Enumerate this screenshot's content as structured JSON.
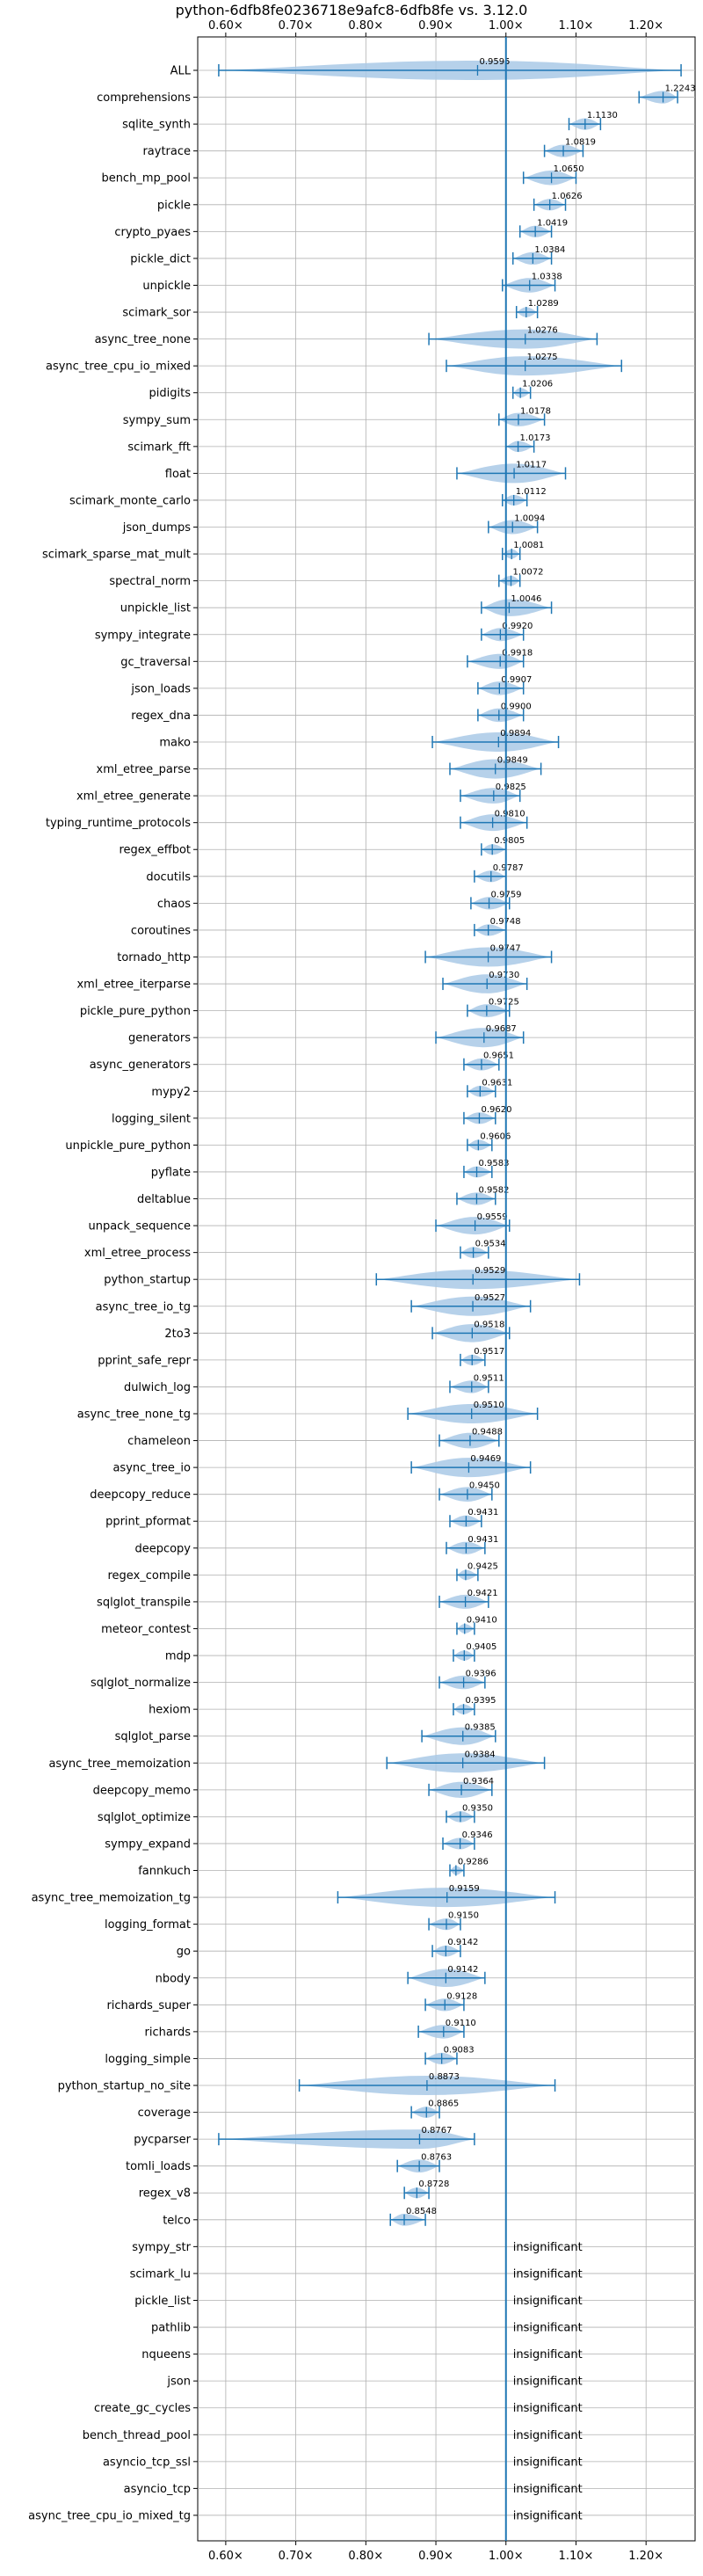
{
  "chart_data": {
    "type": "violin",
    "title": "python-6dfb8fe0236718e9afc8-6dfb8fe vs. 3.12.0",
    "xlim": [
      0.56,
      1.27
    ],
    "x_ticks": [
      {
        "value": 0.6,
        "label": "0.60×"
      },
      {
        "value": 0.7,
        "label": "0.70×"
      },
      {
        "value": 0.8,
        "label": "0.80×"
      },
      {
        "value": 0.9,
        "label": "0.90×"
      },
      {
        "value": 1.0,
        "label": "1.00×"
      },
      {
        "value": 1.1,
        "label": "1.10×"
      },
      {
        "value": 1.2,
        "label": "1.20×"
      }
    ],
    "reference_line": 1.0,
    "grid": true,
    "colors": {
      "accent": "#1f77b4",
      "violin": "#a9c9e6",
      "grid": "#b0b0b0"
    },
    "insignificant_label": "insignificant",
    "benchmarks": [
      {
        "name": "ALL",
        "value": 0.9595,
        "label": "0.9595",
        "min": 0.59,
        "max": 1.25
      },
      {
        "name": "comprehensions",
        "value": 1.2243,
        "label": "1.2243",
        "min": 1.19,
        "max": 1.245
      },
      {
        "name": "sqlite_synth",
        "value": 1.113,
        "label": "1.1130",
        "min": 1.09,
        "max": 1.135
      },
      {
        "name": "raytrace",
        "value": 1.0819,
        "label": "1.0819",
        "min": 1.055,
        "max": 1.11
      },
      {
        "name": "bench_mp_pool",
        "value": 1.065,
        "label": "1.0650",
        "min": 1.025,
        "max": 1.1
      },
      {
        "name": "pickle",
        "value": 1.0626,
        "label": "1.0626",
        "min": 1.04,
        "max": 1.085
      },
      {
        "name": "crypto_pyaes",
        "value": 1.0419,
        "label": "1.0419",
        "min": 1.02,
        "max": 1.065
      },
      {
        "name": "pickle_dict",
        "value": 1.0384,
        "label": "1.0384",
        "min": 1.01,
        "max": 1.065
      },
      {
        "name": "unpickle",
        "value": 1.0338,
        "label": "1.0338",
        "min": 0.995,
        "max": 1.07
      },
      {
        "name": "scimark_sor",
        "value": 1.0289,
        "label": "1.0289",
        "min": 1.015,
        "max": 1.045
      },
      {
        "name": "async_tree_none",
        "value": 1.0276,
        "label": "1.0276",
        "min": 0.89,
        "max": 1.13
      },
      {
        "name": "async_tree_cpu_io_mixed",
        "value": 1.0275,
        "label": "1.0275",
        "min": 0.915,
        "max": 1.165
      },
      {
        "name": "pidigits",
        "value": 1.0206,
        "label": "1.0206",
        "min": 1.01,
        "max": 1.035
      },
      {
        "name": "sympy_sum",
        "value": 1.0178,
        "label": "1.0178",
        "min": 0.99,
        "max": 1.055
      },
      {
        "name": "scimark_fft",
        "value": 1.0173,
        "label": "1.0173",
        "min": 1.0,
        "max": 1.04
      },
      {
        "name": "float",
        "value": 1.0117,
        "label": "1.0117",
        "min": 0.93,
        "max": 1.085
      },
      {
        "name": "scimark_monte_carlo",
        "value": 1.0112,
        "label": "1.0112",
        "min": 0.995,
        "max": 1.03
      },
      {
        "name": "json_dumps",
        "value": 1.0094,
        "label": "1.0094",
        "min": 0.975,
        "max": 1.045
      },
      {
        "name": "scimark_sparse_mat_mult",
        "value": 1.0081,
        "label": "1.0081",
        "min": 0.995,
        "max": 1.02
      },
      {
        "name": "spectral_norm",
        "value": 1.0072,
        "label": "1.0072",
        "min": 0.99,
        "max": 1.02
      },
      {
        "name": "unpickle_list",
        "value": 1.0046,
        "label": "1.0046",
        "min": 0.965,
        "max": 1.065
      },
      {
        "name": "sympy_integrate",
        "value": 0.992,
        "label": "0.9920",
        "min": 0.965,
        "max": 1.025
      },
      {
        "name": "gc_traversal",
        "value": 0.9918,
        "label": "0.9918",
        "min": 0.945,
        "max": 1.025
      },
      {
        "name": "json_loads",
        "value": 0.9907,
        "label": "0.9907",
        "min": 0.96,
        "max": 1.025
      },
      {
        "name": "regex_dna",
        "value": 0.99,
        "label": "0.9900",
        "min": 0.96,
        "max": 1.025
      },
      {
        "name": "mako",
        "value": 0.9894,
        "label": "0.9894",
        "min": 0.895,
        "max": 1.075
      },
      {
        "name": "xml_etree_parse",
        "value": 0.9849,
        "label": "0.9849",
        "min": 0.92,
        "max": 1.05
      },
      {
        "name": "xml_etree_generate",
        "value": 0.9825,
        "label": "0.9825",
        "min": 0.935,
        "max": 1.02
      },
      {
        "name": "typing_runtime_protocols",
        "value": 0.981,
        "label": "0.9810",
        "min": 0.935,
        "max": 1.03
      },
      {
        "name": "regex_effbot",
        "value": 0.9805,
        "label": "0.9805",
        "min": 0.965,
        "max": 1.0
      },
      {
        "name": "docutils",
        "value": 0.9787,
        "label": "0.9787",
        "min": 0.955,
        "max": 1.0
      },
      {
        "name": "chaos",
        "value": 0.9759,
        "label": "0.9759",
        "min": 0.95,
        "max": 1.005
      },
      {
        "name": "coroutines",
        "value": 0.9748,
        "label": "0.9748",
        "min": 0.955,
        "max": 1.0
      },
      {
        "name": "tornado_http",
        "value": 0.9747,
        "label": "0.9747",
        "min": 0.885,
        "max": 1.065
      },
      {
        "name": "xml_etree_iterparse",
        "value": 0.973,
        "label": "0.9730",
        "min": 0.91,
        "max": 1.03
      },
      {
        "name": "pickle_pure_python",
        "value": 0.9725,
        "label": "0.9725",
        "min": 0.945,
        "max": 1.005
      },
      {
        "name": "generators",
        "value": 0.9687,
        "label": "0.9687",
        "min": 0.9,
        "max": 1.025
      },
      {
        "name": "async_generators",
        "value": 0.9651,
        "label": "0.9651",
        "min": 0.94,
        "max": 0.99
      },
      {
        "name": "mypy2",
        "value": 0.9631,
        "label": "0.9631",
        "min": 0.945,
        "max": 0.985
      },
      {
        "name": "logging_silent",
        "value": 0.962,
        "label": "0.9620",
        "min": 0.94,
        "max": 0.985
      },
      {
        "name": "unpickle_pure_python",
        "value": 0.9606,
        "label": "0.9606",
        "min": 0.945,
        "max": 0.98
      },
      {
        "name": "pyflate",
        "value": 0.9583,
        "label": "0.9583",
        "min": 0.94,
        "max": 0.98
      },
      {
        "name": "deltablue",
        "value": 0.9582,
        "label": "0.9582",
        "min": 0.93,
        "max": 0.985
      },
      {
        "name": "unpack_sequence",
        "value": 0.9559,
        "label": "0.9559",
        "min": 0.9,
        "max": 1.005
      },
      {
        "name": "xml_etree_process",
        "value": 0.9534,
        "label": "0.9534",
        "min": 0.935,
        "max": 0.975
      },
      {
        "name": "python_startup",
        "value": 0.9529,
        "label": "0.9529",
        "min": 0.815,
        "max": 1.105
      },
      {
        "name": "async_tree_io_tg",
        "value": 0.9527,
        "label": "0.9527",
        "min": 0.865,
        "max": 1.035
      },
      {
        "name": "2to3",
        "value": 0.9518,
        "label": "0.9518",
        "min": 0.895,
        "max": 1.005
      },
      {
        "name": "pprint_safe_repr",
        "value": 0.9517,
        "label": "0.9517",
        "min": 0.935,
        "max": 0.97
      },
      {
        "name": "dulwich_log",
        "value": 0.9511,
        "label": "0.9511",
        "min": 0.92,
        "max": 0.975
      },
      {
        "name": "async_tree_none_tg",
        "value": 0.951,
        "label": "0.9510",
        "min": 0.86,
        "max": 1.045
      },
      {
        "name": "chameleon",
        "value": 0.9488,
        "label": "0.9488",
        "min": 0.905,
        "max": 0.99
      },
      {
        "name": "async_tree_io",
        "value": 0.9469,
        "label": "0.9469",
        "min": 0.865,
        "max": 1.035
      },
      {
        "name": "deepcopy_reduce",
        "value": 0.945,
        "label": "0.9450",
        "min": 0.905,
        "max": 0.98
      },
      {
        "name": "pprint_pformat",
        "value": 0.9431,
        "label": "0.9431",
        "min": 0.92,
        "max": 0.965
      },
      {
        "name": "deepcopy",
        "value": 0.9431,
        "label": "0.9431",
        "min": 0.915,
        "max": 0.97
      },
      {
        "name": "regex_compile",
        "value": 0.9425,
        "label": "0.9425",
        "min": 0.93,
        "max": 0.96
      },
      {
        "name": "sqlglot_transpile",
        "value": 0.9421,
        "label": "0.9421",
        "min": 0.905,
        "max": 0.975
      },
      {
        "name": "meteor_contest",
        "value": 0.941,
        "label": "0.9410",
        "min": 0.93,
        "max": 0.955
      },
      {
        "name": "mdp",
        "value": 0.9405,
        "label": "0.9405",
        "min": 0.925,
        "max": 0.955
      },
      {
        "name": "sqlglot_normalize",
        "value": 0.9396,
        "label": "0.9396",
        "min": 0.905,
        "max": 0.97
      },
      {
        "name": "hexiom",
        "value": 0.9395,
        "label": "0.9395",
        "min": 0.925,
        "max": 0.955
      },
      {
        "name": "sqlglot_parse",
        "value": 0.9385,
        "label": "0.9385",
        "min": 0.88,
        "max": 0.985
      },
      {
        "name": "async_tree_memoization",
        "value": 0.9384,
        "label": "0.9384",
        "min": 0.83,
        "max": 1.055
      },
      {
        "name": "deepcopy_memo",
        "value": 0.9364,
        "label": "0.9364",
        "min": 0.89,
        "max": 0.98
      },
      {
        "name": "sqlglot_optimize",
        "value": 0.935,
        "label": "0.9350",
        "min": 0.915,
        "max": 0.955
      },
      {
        "name": "sympy_expand",
        "value": 0.9346,
        "label": "0.9346",
        "min": 0.91,
        "max": 0.955
      },
      {
        "name": "fannkuch",
        "value": 0.9286,
        "label": "0.9286",
        "min": 0.92,
        "max": 0.94
      },
      {
        "name": "async_tree_memoization_tg",
        "value": 0.9159,
        "label": "0.9159",
        "min": 0.76,
        "max": 1.07
      },
      {
        "name": "logging_format",
        "value": 0.915,
        "label": "0.9150",
        "min": 0.89,
        "max": 0.935
      },
      {
        "name": "go",
        "value": 0.9142,
        "label": "0.9142",
        "min": 0.895,
        "max": 0.935
      },
      {
        "name": "nbody",
        "value": 0.9142,
        "label": "0.9142",
        "min": 0.86,
        "max": 0.97
      },
      {
        "name": "richards_super",
        "value": 0.9128,
        "label": "0.9128",
        "min": 0.885,
        "max": 0.94
      },
      {
        "name": "richards",
        "value": 0.911,
        "label": "0.9110",
        "min": 0.875,
        "max": 0.94
      },
      {
        "name": "logging_simple",
        "value": 0.9083,
        "label": "0.9083",
        "min": 0.885,
        "max": 0.93
      },
      {
        "name": "python_startup_no_site",
        "value": 0.8873,
        "label": "0.8873",
        "min": 0.705,
        "max": 1.07
      },
      {
        "name": "coverage",
        "value": 0.8865,
        "label": "0.8865",
        "min": 0.865,
        "max": 0.905
      },
      {
        "name": "pycparser",
        "value": 0.8767,
        "label": "0.8767",
        "min": 0.59,
        "max": 0.955
      },
      {
        "name": "tomli_loads",
        "value": 0.8763,
        "label": "0.8763",
        "min": 0.845,
        "max": 0.905
      },
      {
        "name": "regex_v8",
        "value": 0.8728,
        "label": "0.8728",
        "min": 0.855,
        "max": 0.89
      },
      {
        "name": "telco",
        "value": 0.8548,
        "label": "0.8548",
        "min": 0.835,
        "max": 0.885
      },
      {
        "name": "sympy_str",
        "insignificant": true
      },
      {
        "name": "scimark_lu",
        "insignificant": true
      },
      {
        "name": "pickle_list",
        "insignificant": true
      },
      {
        "name": "pathlib",
        "insignificant": true
      },
      {
        "name": "nqueens",
        "insignificant": true
      },
      {
        "name": "json",
        "insignificant": true
      },
      {
        "name": "create_gc_cycles",
        "insignificant": true
      },
      {
        "name": "bench_thread_pool",
        "insignificant": true
      },
      {
        "name": "asyncio_tcp_ssl",
        "insignificant": true
      },
      {
        "name": "asyncio_tcp",
        "insignificant": true
      },
      {
        "name": "async_tree_cpu_io_mixed_tg",
        "insignificant": true
      }
    ]
  }
}
